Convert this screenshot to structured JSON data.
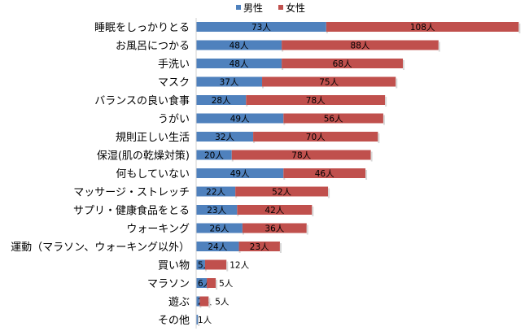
{
  "chart_data": {
    "type": "bar",
    "orientation": "horizontal",
    "stacked": true,
    "unit_suffix": "人",
    "legend_position": "top",
    "grid": false,
    "categories": [
      "睡眠をしっかりとる",
      "お風呂につかる",
      "手洗い",
      "マスク",
      "バランスの良い食事",
      "うがい",
      "規則正しい生活",
      "保湿(肌の乾燥対策)",
      "何もしていない",
      "マッサージ・ストレッチ",
      "サプリ・健康食品をとる",
      "ウォーキング",
      "運動（マラソン、ウォーキング以外）",
      "買い物",
      "マラソン",
      "遊ぶ",
      "その他"
    ],
    "series": [
      {
        "name": "男性",
        "color": "#4f81bd",
        "values": [
          73,
          48,
          48,
          37,
          28,
          49,
          32,
          20,
          49,
          22,
          23,
          26,
          24,
          5,
          6,
          2,
          1
        ]
      },
      {
        "name": "女性",
        "color": "#c0504d",
        "values": [
          108,
          88,
          68,
          75,
          78,
          56,
          70,
          78,
          46,
          52,
          42,
          36,
          23,
          12,
          5,
          5,
          0
        ]
      }
    ]
  }
}
